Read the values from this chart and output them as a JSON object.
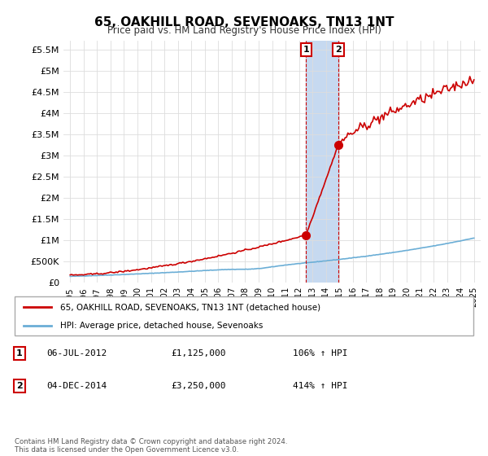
{
  "title": "65, OAKHILL ROAD, SEVENOAKS, TN13 1NT",
  "subtitle": "Price paid vs. HM Land Registry's House Price Index (HPI)",
  "ylim": [
    0,
    5700000
  ],
  "yticks": [
    0,
    500000,
    1000000,
    1500000,
    2000000,
    2500000,
    3000000,
    3500000,
    4000000,
    4500000,
    5000000,
    5500000
  ],
  "ytick_labels": [
    "£0",
    "£500K",
    "£1M",
    "£1.5M",
    "£2M",
    "£2.5M",
    "£3M",
    "£3.5M",
    "£4M",
    "£4.5M",
    "£5M",
    "£5.5M"
  ],
  "hpi_color": "#6baed6",
  "price_color": "#cc0000",
  "sale1_date": 2012.52,
  "sale1_price": 1125000,
  "sale1_label": "1",
  "sale2_date": 2014.92,
  "sale2_price": 3250000,
  "sale2_label": "2",
  "legend_line1": "65, OAKHILL ROAD, SEVENOAKS, TN13 1NT (detached house)",
  "legend_line2": "HPI: Average price, detached house, Sevenoaks",
  "annotation1_date": "06-JUL-2012",
  "annotation1_price": "£1,125,000",
  "annotation1_hpi": "106% ↑ HPI",
  "annotation2_date": "04-DEC-2014",
  "annotation2_price": "£3,250,000",
  "annotation2_hpi": "414% ↑ HPI",
  "footer": "Contains HM Land Registry data © Crown copyright and database right 2024.\nThis data is licensed under the Open Government Licence v3.0.",
  "background_color": "#ffffff",
  "grid_color": "#dddddd",
  "shade_color": "#c6d9f0"
}
